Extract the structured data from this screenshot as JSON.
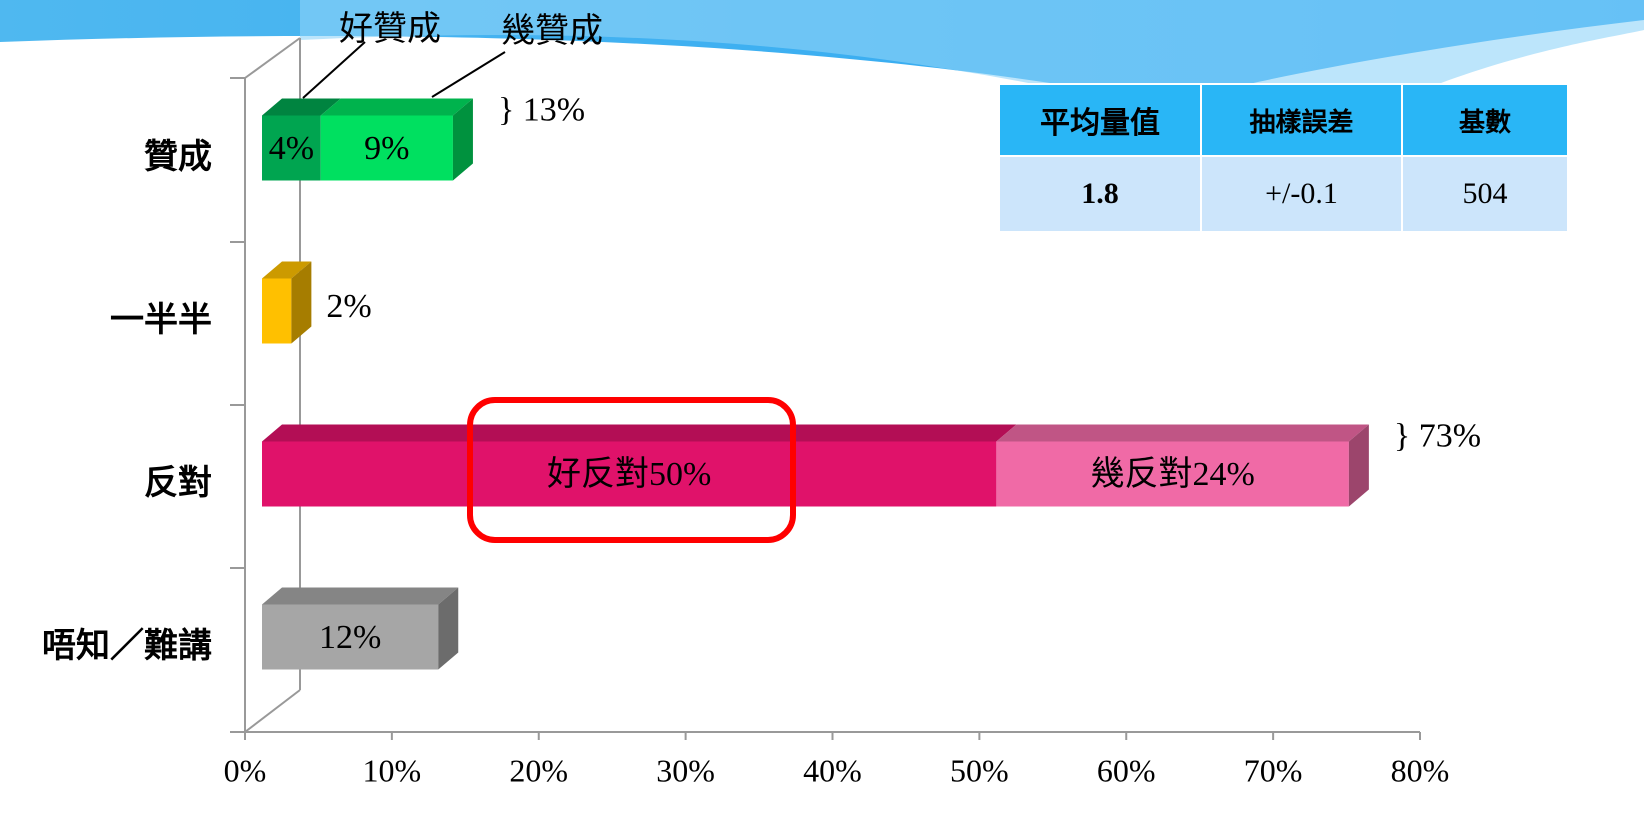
{
  "chart_data": {
    "type": "bar",
    "orientation": "horizontal",
    "stacked": true,
    "three_d": true,
    "categories": [
      "贊成",
      "一半半",
      "反對",
      "唔知／難講"
    ],
    "segments": [
      [
        {
          "value": 4,
          "value_label": "4%",
          "color": "#00a550"
        },
        {
          "value": 9,
          "value_label": "9%",
          "color": "#00e060"
        }
      ],
      [
        {
          "value": 2,
          "value_label": "2%",
          "color": "#ffc000"
        }
      ],
      [
        {
          "value": 50,
          "value_label": "好反對50%",
          "color": "#e0126a"
        },
        {
          "value": 24,
          "value_label": "幾反對24%",
          "color": "#f06aa6"
        }
      ],
      [
        {
          "value": 12,
          "value_label": "12%",
          "color": "#a6a6a6"
        }
      ]
    ],
    "totals": [
      {
        "value": 13,
        "label": "} 13%"
      },
      null,
      {
        "value": 73,
        "label": "} 73%"
      },
      null
    ],
    "annotations": [
      "好贊成",
      "幾贊成"
    ],
    "xlim": [
      0,
      80
    ],
    "xticks": [
      {
        "value": 0,
        "label": "0%"
      },
      {
        "value": 10,
        "label": "10%"
      },
      {
        "value": 20,
        "label": "20%"
      },
      {
        "value": 30,
        "label": "30%"
      },
      {
        "value": 40,
        "label": "40%"
      },
      {
        "value": 50,
        "label": "50%"
      },
      {
        "value": 60,
        "label": "60%"
      },
      {
        "value": 70,
        "label": "70%"
      },
      {
        "value": 80,
        "label": "80%"
      }
    ]
  },
  "table": {
    "header": [
      "平均量值",
      "抽樣誤差",
      "基數"
    ],
    "rows": [
      [
        "1.8",
        "+/-0.1",
        "504"
      ]
    ]
  }
}
